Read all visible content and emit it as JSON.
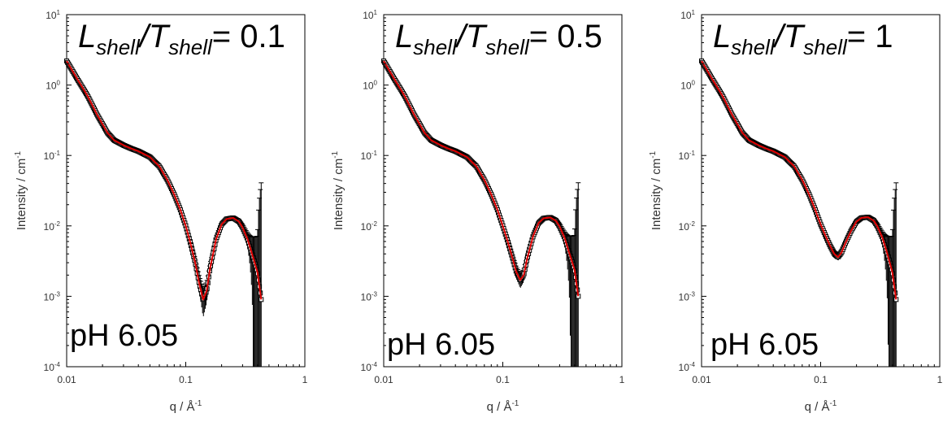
{
  "chart_data": [
    {
      "type": "scatter",
      "title": {
        "main": "L",
        "sub1": "shell",
        "slash": "/T",
        "sub2": "shell",
        "tail": "= 0.1"
      },
      "annotation": "pH 6.05",
      "xlabel": {
        "base": "q / Å",
        "sup": "-1"
      },
      "ylabel": {
        "base": "Intensity / cm",
        "sup": "-1"
      },
      "xscale": "log",
      "yscale": "log",
      "xlim": [
        0.01,
        1
      ],
      "ylim": [
        0.0001,
        10
      ],
      "xticks": [
        {
          "value": 0.01,
          "label": "0.01"
        },
        {
          "value": 0.1,
          "label": "0.1"
        },
        {
          "value": 1,
          "label": "1"
        }
      ],
      "yticks": [
        {
          "value": 0.0001,
          "base": "10",
          "exp": "-4"
        },
        {
          "value": 0.001,
          "base": "10",
          "exp": "-3"
        },
        {
          "value": 0.01,
          "base": "10",
          "exp": "-2"
        },
        {
          "value": 0.1,
          "base": "10",
          "exp": "-1"
        },
        {
          "value": 1,
          "base": "10",
          "exp": "0"
        },
        {
          "value": 10,
          "base": "10",
          "exp": "1"
        }
      ],
      "series": [
        {
          "kind": "data",
          "color": "#000000",
          "x": [
            0.01,
            0.012,
            0.015,
            0.018,
            0.022,
            0.025,
            0.03,
            0.035,
            0.04,
            0.05,
            0.06,
            0.07,
            0.08,
            0.09,
            0.1,
            0.11,
            0.12,
            0.13,
            0.14,
            0.15,
            0.16,
            0.18,
            0.2,
            0.22,
            0.25,
            0.28,
            0.3,
            0.33,
            0.36,
            0.4,
            0.43
          ],
          "y": [
            2.2,
            1.3,
            0.7,
            0.38,
            0.21,
            0.165,
            0.14,
            0.125,
            0.115,
            0.095,
            0.07,
            0.045,
            0.028,
            0.017,
            0.01,
            0.0055,
            0.003,
            0.0015,
            0.0009,
            0.0012,
            0.0025,
            0.0065,
            0.0105,
            0.0125,
            0.013,
            0.0115,
            0.0095,
            0.0065,
            0.004,
            0.0022,
            0.0009
          ],
          "error": [
            0.1,
            0.06,
            0.03,
            0.015,
            0.008,
            0.006,
            0.005,
            0.004,
            0.004,
            0.003,
            0.0025,
            0.0018,
            0.0012,
            0.0008,
            0.0006,
            0.0005,
            0.0004,
            0.0004,
            0.0004,
            0.0004,
            0.0004,
            0.0005,
            0.0006,
            0.0007,
            0.0008,
            0.0009,
            0.001,
            0.0015,
            0.003,
            0.005,
            0.04
          ]
        },
        {
          "kind": "fit",
          "color": "#e00000",
          "x": [
            0.01,
            0.012,
            0.015,
            0.018,
            0.022,
            0.025,
            0.03,
            0.035,
            0.04,
            0.05,
            0.06,
            0.07,
            0.08,
            0.09,
            0.1,
            0.11,
            0.12,
            0.13,
            0.14,
            0.15,
            0.16,
            0.18,
            0.2,
            0.22,
            0.25,
            0.28,
            0.3,
            0.33,
            0.36,
            0.4,
            0.43
          ],
          "y": [
            2.2,
            1.3,
            0.7,
            0.38,
            0.21,
            0.165,
            0.14,
            0.125,
            0.115,
            0.095,
            0.07,
            0.045,
            0.028,
            0.017,
            0.01,
            0.0055,
            0.003,
            0.0015,
            0.0009,
            0.0012,
            0.0025,
            0.0065,
            0.0105,
            0.0125,
            0.013,
            0.0115,
            0.0095,
            0.0065,
            0.004,
            0.0022,
            0.0009
          ]
        }
      ]
    },
    {
      "type": "scatter",
      "title": {
        "main": "L",
        "sub1": "shell",
        "slash": "/T",
        "sub2": "shell",
        "tail": "= 0.5"
      },
      "annotation": "pH 6.05",
      "xlabel": {
        "base": "q / Å",
        "sup": "-1"
      },
      "ylabel": {
        "base": "Intensity / cm",
        "sup": "-1"
      },
      "xscale": "log",
      "yscale": "log",
      "xlim": [
        0.01,
        1
      ],
      "ylim": [
        0.0001,
        10
      ],
      "xticks": [
        {
          "value": 0.01,
          "label": "0.01"
        },
        {
          "value": 0.1,
          "label": "0.1"
        },
        {
          "value": 1,
          "label": "1"
        }
      ],
      "yticks": [
        {
          "value": 0.0001,
          "base": "10",
          "exp": "-4"
        },
        {
          "value": 0.001,
          "base": "10",
          "exp": "-3"
        },
        {
          "value": 0.01,
          "base": "10",
          "exp": "-2"
        },
        {
          "value": 0.1,
          "base": "10",
          "exp": "-1"
        },
        {
          "value": 1,
          "base": "10",
          "exp": "0"
        },
        {
          "value": 10,
          "base": "10",
          "exp": "1"
        }
      ],
      "series": [
        {
          "kind": "data",
          "color": "#000000",
          "x": [
            0.01,
            0.012,
            0.015,
            0.018,
            0.022,
            0.025,
            0.03,
            0.035,
            0.04,
            0.05,
            0.06,
            0.07,
            0.08,
            0.09,
            0.1,
            0.11,
            0.12,
            0.13,
            0.14,
            0.15,
            0.16,
            0.18,
            0.2,
            0.22,
            0.25,
            0.28,
            0.3,
            0.33,
            0.36,
            0.4,
            0.43
          ],
          "y": [
            2.2,
            1.3,
            0.7,
            0.38,
            0.21,
            0.165,
            0.14,
            0.125,
            0.115,
            0.095,
            0.07,
            0.045,
            0.028,
            0.017,
            0.01,
            0.006,
            0.0036,
            0.0022,
            0.0017,
            0.002,
            0.0034,
            0.0072,
            0.011,
            0.0128,
            0.0132,
            0.0118,
            0.0098,
            0.0068,
            0.0042,
            0.0024,
            0.001
          ],
          "error": [
            0.1,
            0.06,
            0.03,
            0.015,
            0.008,
            0.006,
            0.005,
            0.004,
            0.004,
            0.003,
            0.0025,
            0.0018,
            0.0012,
            0.0008,
            0.0006,
            0.0005,
            0.0004,
            0.0004,
            0.0004,
            0.0004,
            0.0004,
            0.0005,
            0.0006,
            0.0007,
            0.0008,
            0.0009,
            0.001,
            0.0015,
            0.003,
            0.005,
            0.04
          ]
        },
        {
          "kind": "fit",
          "color": "#e00000",
          "x": [
            0.01,
            0.012,
            0.015,
            0.018,
            0.022,
            0.025,
            0.03,
            0.035,
            0.04,
            0.05,
            0.06,
            0.07,
            0.08,
            0.09,
            0.1,
            0.11,
            0.12,
            0.13,
            0.14,
            0.15,
            0.16,
            0.18,
            0.2,
            0.22,
            0.25,
            0.28,
            0.3,
            0.33,
            0.36,
            0.4,
            0.43
          ],
          "y": [
            2.2,
            1.3,
            0.7,
            0.38,
            0.21,
            0.165,
            0.14,
            0.125,
            0.115,
            0.095,
            0.07,
            0.045,
            0.028,
            0.017,
            0.01,
            0.006,
            0.0036,
            0.0022,
            0.0017,
            0.002,
            0.0034,
            0.0072,
            0.011,
            0.0128,
            0.0132,
            0.0118,
            0.0098,
            0.0068,
            0.0042,
            0.0024,
            0.001
          ]
        }
      ]
    },
    {
      "type": "scatter",
      "title": {
        "main": "L",
        "sub1": "shell",
        "slash": "/T",
        "sub2": "shell",
        "tail": "= 1"
      },
      "annotation": "pH 6.05",
      "xlabel": {
        "base": "q / Å",
        "sup": "-1"
      },
      "ylabel": {
        "base": "Intensity / cm",
        "sup": "-1"
      },
      "xscale": "log",
      "yscale": "log",
      "xlim": [
        0.01,
        1
      ],
      "ylim": [
        0.0001,
        10
      ],
      "xticks": [
        {
          "value": 0.01,
          "label": "0.01"
        },
        {
          "value": 0.1,
          "label": "0.1"
        },
        {
          "value": 1,
          "label": "1"
        }
      ],
      "yticks": [
        {
          "value": 0.0001,
          "base": "10",
          "exp": "-4"
        },
        {
          "value": 0.001,
          "base": "10",
          "exp": "-3"
        },
        {
          "value": 0.01,
          "base": "10",
          "exp": "-2"
        },
        {
          "value": 0.1,
          "base": "10",
          "exp": "-1"
        },
        {
          "value": 1,
          "base": "10",
          "exp": "0"
        },
        {
          "value": 10,
          "base": "10",
          "exp": "1"
        }
      ],
      "series": [
        {
          "kind": "data",
          "color": "#000000",
          "x": [
            0.01,
            0.012,
            0.015,
            0.018,
            0.022,
            0.025,
            0.03,
            0.035,
            0.04,
            0.05,
            0.06,
            0.07,
            0.08,
            0.09,
            0.1,
            0.11,
            0.12,
            0.13,
            0.14,
            0.15,
            0.16,
            0.18,
            0.2,
            0.22,
            0.25,
            0.28,
            0.3,
            0.33,
            0.36,
            0.4,
            0.43
          ],
          "y": [
            2.2,
            1.3,
            0.7,
            0.38,
            0.21,
            0.165,
            0.14,
            0.125,
            0.115,
            0.095,
            0.07,
            0.045,
            0.028,
            0.017,
            0.0105,
            0.0072,
            0.0052,
            0.004,
            0.0036,
            0.0042,
            0.0055,
            0.0085,
            0.0115,
            0.013,
            0.0133,
            0.0118,
            0.0098,
            0.0068,
            0.0042,
            0.0022,
            0.0009
          ],
          "error": [
            0.1,
            0.06,
            0.03,
            0.015,
            0.008,
            0.006,
            0.005,
            0.004,
            0.004,
            0.003,
            0.0025,
            0.0018,
            0.0012,
            0.0008,
            0.0006,
            0.0005,
            0.0004,
            0.0004,
            0.0004,
            0.0004,
            0.0004,
            0.0005,
            0.0006,
            0.0007,
            0.0008,
            0.0009,
            0.001,
            0.0015,
            0.003,
            0.005,
            0.04
          ]
        },
        {
          "kind": "fit",
          "color": "#e00000",
          "x": [
            0.01,
            0.012,
            0.015,
            0.018,
            0.022,
            0.025,
            0.03,
            0.035,
            0.04,
            0.05,
            0.06,
            0.07,
            0.08,
            0.09,
            0.1,
            0.11,
            0.12,
            0.13,
            0.14,
            0.15,
            0.16,
            0.18,
            0.2,
            0.22,
            0.25,
            0.28,
            0.3,
            0.33,
            0.36,
            0.4,
            0.43
          ],
          "y": [
            2.2,
            1.3,
            0.7,
            0.38,
            0.21,
            0.165,
            0.14,
            0.125,
            0.115,
            0.095,
            0.07,
            0.045,
            0.028,
            0.017,
            0.0105,
            0.0072,
            0.0052,
            0.004,
            0.0036,
            0.0042,
            0.0055,
            0.0085,
            0.0115,
            0.013,
            0.0133,
            0.0118,
            0.0098,
            0.0068,
            0.0042,
            0.0022,
            0.0009
          ]
        }
      ]
    }
  ]
}
